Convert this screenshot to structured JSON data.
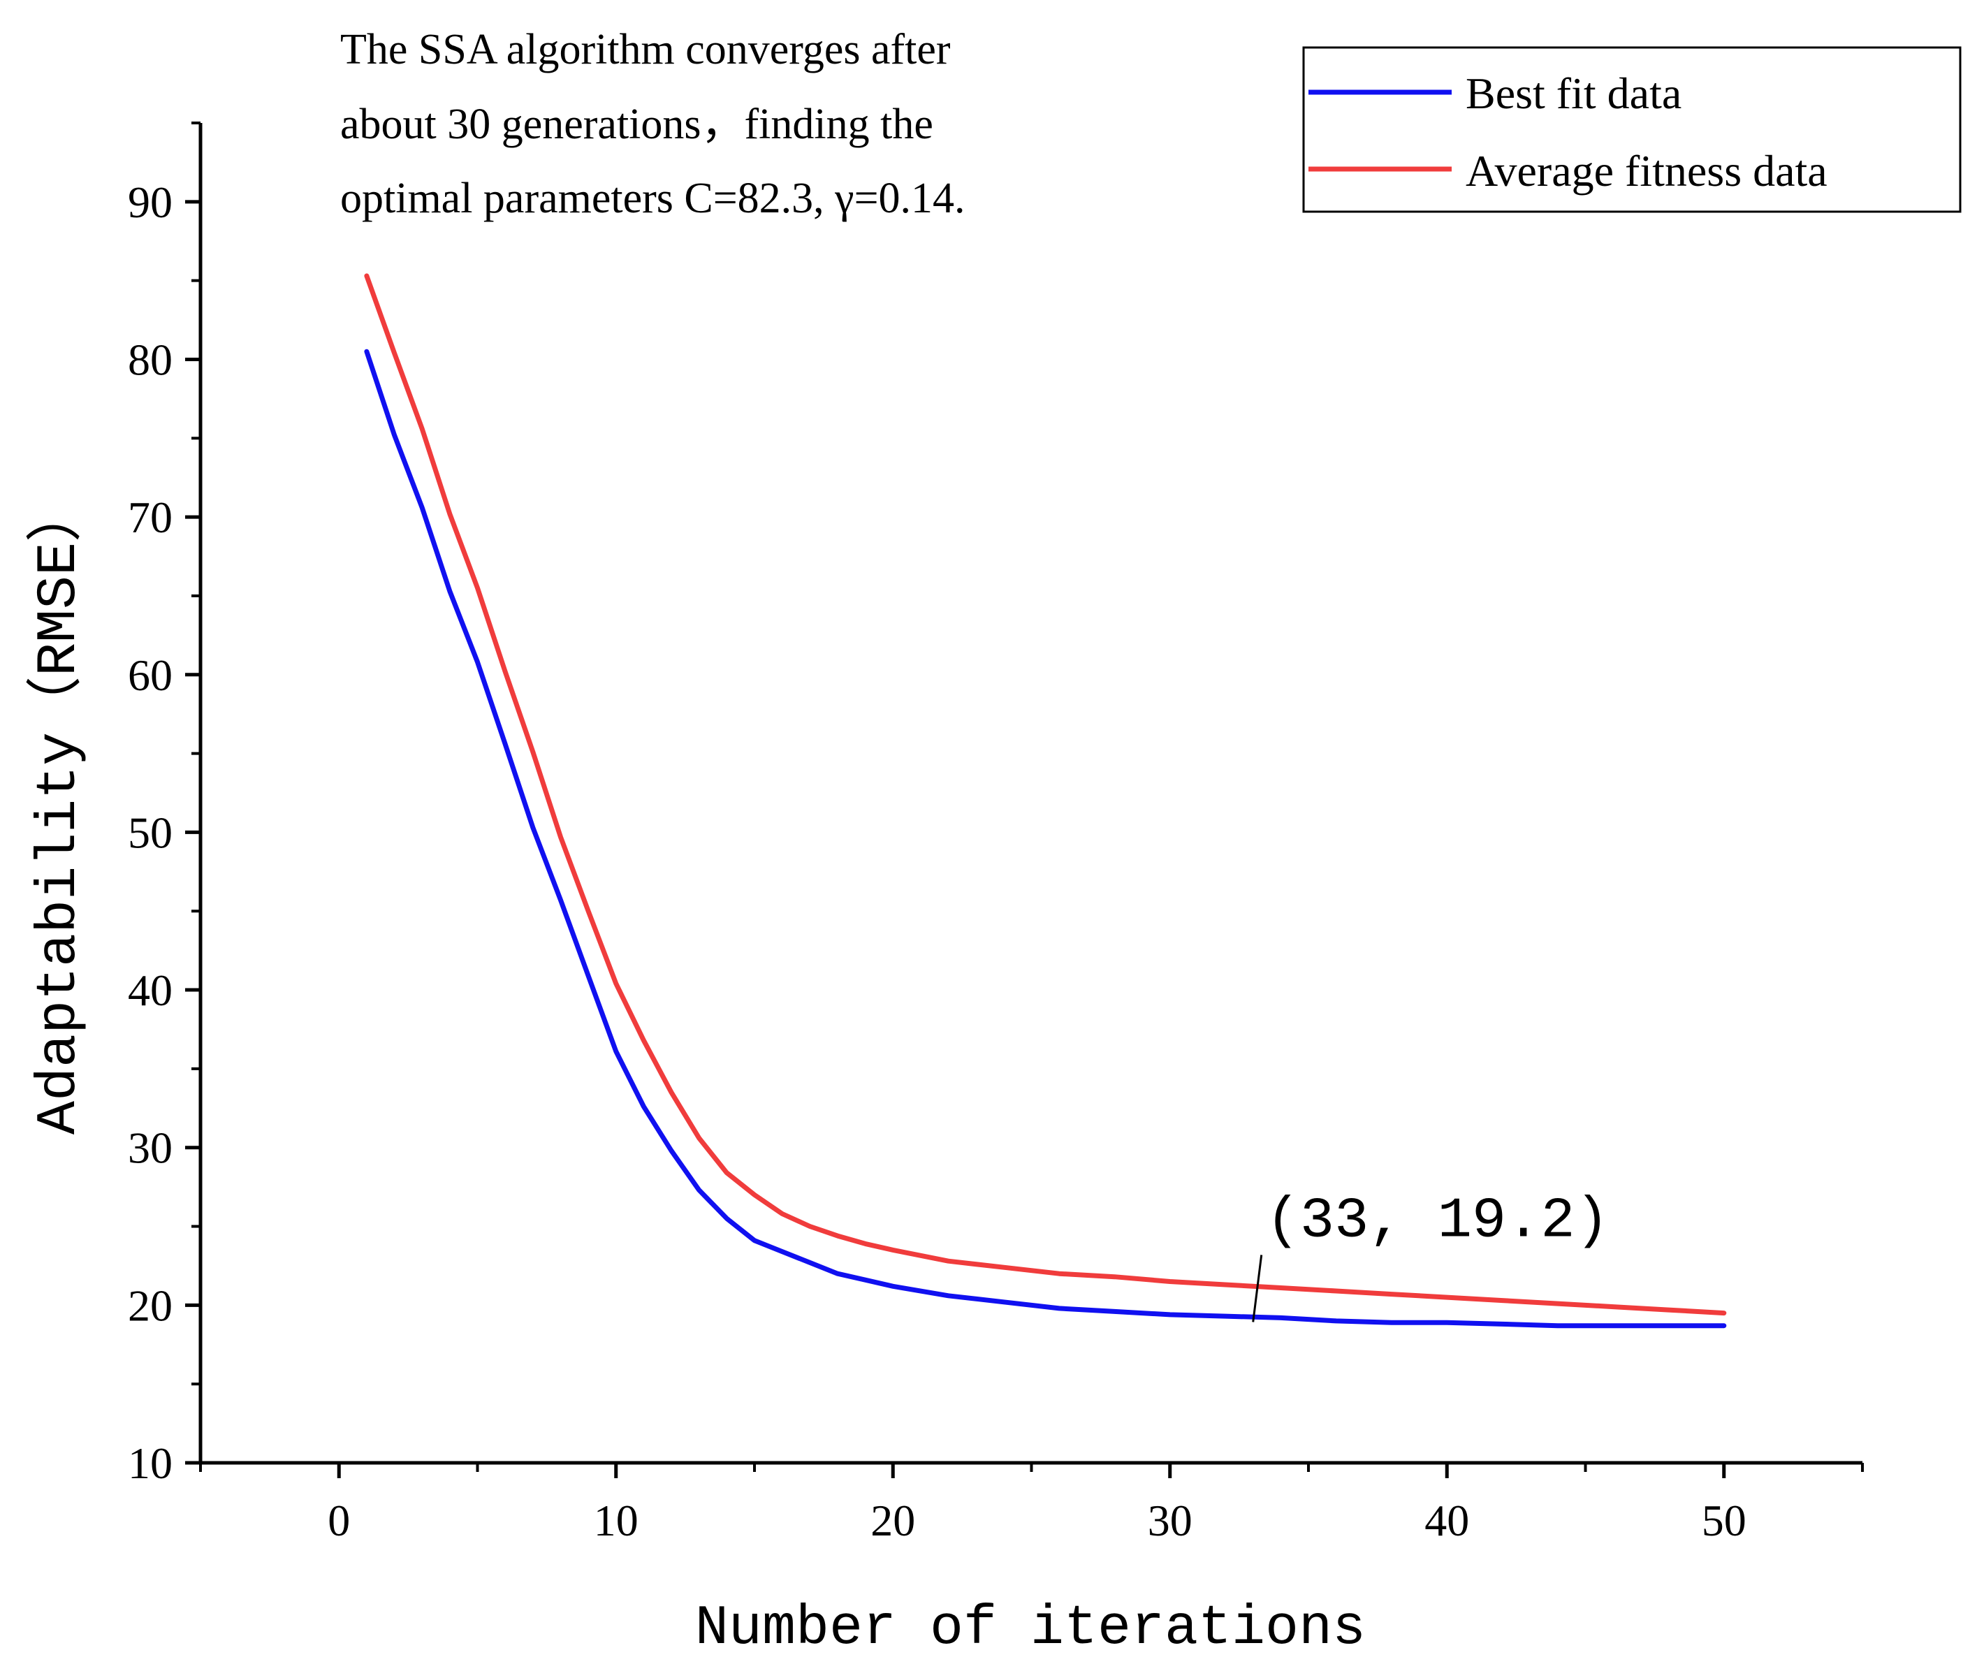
{
  "chart_data": {
    "type": "line",
    "title": "",
    "xlabel": "Number of iterations",
    "ylabel": "Adaptability（RMSE）",
    "xlim": [
      -5,
      55
    ],
    "ylim": [
      10,
      95
    ],
    "xticks": [
      0,
      10,
      20,
      30,
      40,
      50
    ],
    "yticks": [
      10,
      20,
      30,
      40,
      50,
      60,
      70,
      80,
      90
    ],
    "xtick_labels": [
      "0",
      "10",
      "20",
      "30",
      "40",
      "50"
    ],
    "ytick_labels": [
      "10",
      "20",
      "30",
      "40",
      "50",
      "60",
      "70",
      "80",
      "90"
    ],
    "grid": false,
    "legend_position": "top-right",
    "annotation_text": [
      "The SSA algorithm converges after",
      "about 30 generations，finding the",
      "optimal parameters C=82.3, γ=0.14."
    ],
    "point_label": {
      "text": "(33,  19.2)",
      "x": 33,
      "y": 19.2
    },
    "series": [
      {
        "name": "Best fit data",
        "color": "#1010f0",
        "x": [
          1,
          2,
          3,
          4,
          5,
          6,
          7,
          8,
          9,
          10,
          11,
          12,
          13,
          14,
          15,
          16,
          17,
          18,
          19,
          20,
          22,
          24,
          26,
          28,
          30,
          32,
          34,
          36,
          38,
          40,
          42,
          44,
          46,
          48,
          50
        ],
        "values": [
          80.5,
          75.2,
          70.6,
          65.3,
          60.8,
          55.6,
          50.3,
          45.7,
          40.9,
          36.1,
          32.6,
          29.8,
          27.3,
          25.5,
          24.1,
          23.4,
          22.7,
          22.0,
          21.6,
          21.2,
          20.6,
          20.2,
          19.8,
          19.6,
          19.4,
          19.3,
          19.2,
          19.0,
          18.9,
          18.9,
          18.8,
          18.7,
          18.7,
          18.7,
          18.7
        ]
      },
      {
        "name": "Average fitness data",
        "color": "#f03c3c",
        "x": [
          1,
          2,
          3,
          4,
          5,
          6,
          7,
          8,
          9,
          10,
          11,
          12,
          13,
          14,
          15,
          16,
          17,
          18,
          19,
          20,
          22,
          24,
          26,
          28,
          30,
          32,
          34,
          36,
          38,
          40,
          42,
          44,
          46,
          48,
          50
        ],
        "values": [
          85.3,
          80.4,
          75.6,
          70.2,
          65.5,
          60.2,
          55.1,
          49.7,
          45.0,
          40.4,
          36.8,
          33.5,
          30.6,
          28.4,
          27.0,
          25.8,
          25.0,
          24.4,
          23.9,
          23.5,
          22.8,
          22.4,
          22.0,
          21.8,
          21.5,
          21.3,
          21.1,
          20.9,
          20.7,
          20.5,
          20.3,
          20.1,
          19.9,
          19.7,
          19.5
        ]
      }
    ]
  }
}
